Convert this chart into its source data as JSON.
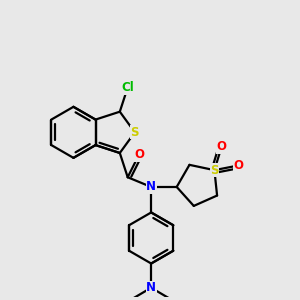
{
  "background_color": "#e8e8e8",
  "bond_color": "#000000",
  "atom_colors": {
    "Cl": "#00bb00",
    "S": "#cccc00",
    "N": "#0000ff",
    "O": "#ff0000"
  },
  "figsize": [
    3.0,
    3.0
  ],
  "dpi": 100
}
